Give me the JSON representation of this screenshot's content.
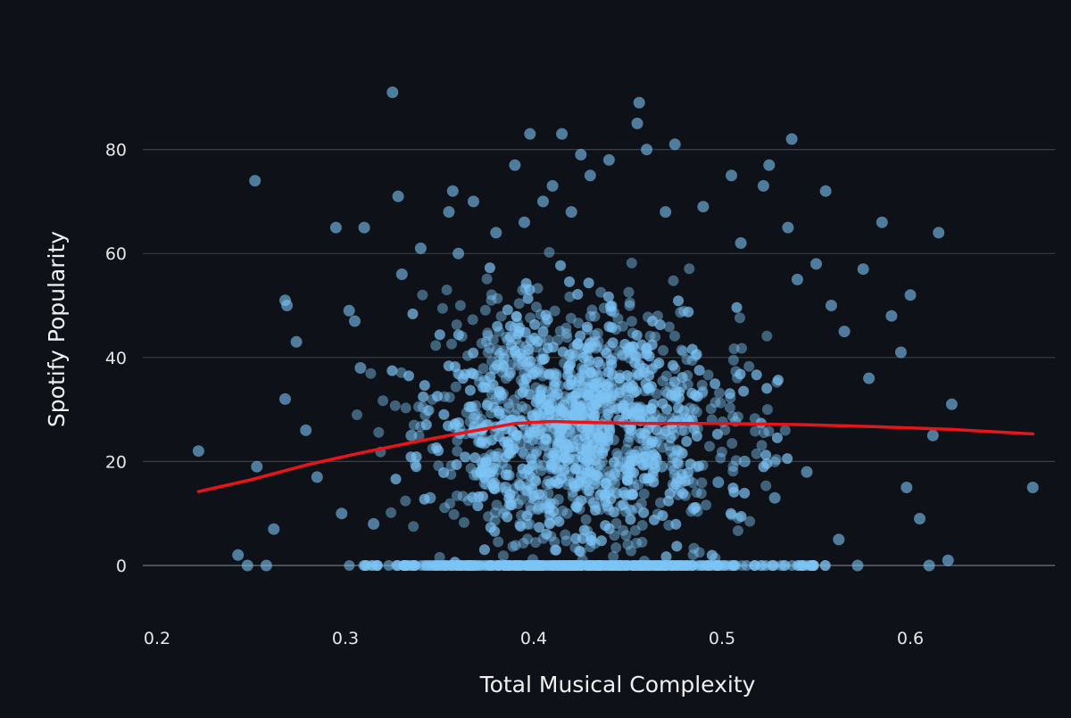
{
  "chart_data": {
    "type": "scatter",
    "title": "",
    "xlabel": "Total Musical Complexity",
    "ylabel": "Spotify Popularity",
    "xlim": [
      0.2,
      0.68
    ],
    "ylim": [
      -10,
      92
    ],
    "x_ticks": [
      0.2,
      0.3,
      0.4,
      0.5,
      0.6
    ],
    "x_tick_labels": [
      "0.2",
      "0.3",
      "0.4",
      "0.5",
      "0.6"
    ],
    "y_ticks": [
      0,
      20,
      40,
      60,
      80
    ],
    "y_tick_labels": [
      "0",
      "20",
      "40",
      "60",
      "80"
    ],
    "grid": true,
    "legend": "none",
    "point_color": "#7cc4f5",
    "trend_color": "#e8141c",
    "background": "#0e1117",
    "series": [
      {
        "kind": "points",
        "x": [
          0.222,
          0.252,
          0.253,
          0.268,
          0.269,
          0.274,
          0.268,
          0.279,
          0.295,
          0.302,
          0.305,
          0.308,
          0.31,
          0.325,
          0.328,
          0.33,
          0.34,
          0.355,
          0.357,
          0.36,
          0.368,
          0.38,
          0.39,
          0.395,
          0.398,
          0.405,
          0.41,
          0.415,
          0.42,
          0.425,
          0.43,
          0.44,
          0.455,
          0.456,
          0.46,
          0.47,
          0.475,
          0.49,
          0.505,
          0.51,
          0.522,
          0.525,
          0.535,
          0.537,
          0.54,
          0.55,
          0.555,
          0.558,
          0.565,
          0.575,
          0.585,
          0.59,
          0.595,
          0.6,
          0.605,
          0.61,
          0.615,
          0.62,
          0.622,
          0.665,
          0.243,
          0.248,
          0.258,
          0.262,
          0.285,
          0.298,
          0.315,
          0.335,
          0.345,
          0.372,
          0.385,
          0.412,
          0.432,
          0.448,
          0.468,
          0.485,
          0.498,
          0.512,
          0.528,
          0.545,
          0.562,
          0.572,
          0.578,
          0.598,
          0.612
        ],
        "y": [
          22,
          74,
          19,
          51,
          50,
          43,
          32,
          26,
          65,
          49,
          47,
          38,
          65,
          91,
          71,
          56,
          61,
          68,
          72,
          60,
          70,
          64,
          77,
          66,
          83,
          70,
          73,
          83,
          68,
          79,
          75,
          78,
          85,
          89,
          80,
          68,
          81,
          69,
          75,
          62,
          73,
          77,
          65,
          82,
          55,
          58,
          72,
          50,
          45,
          57,
          66,
          48,
          41,
          52,
          9,
          0,
          64,
          1,
          31,
          15,
          2,
          0,
          0,
          7,
          17,
          10,
          8,
          25,
          13,
          18,
          15,
          21,
          12,
          14,
          19,
          11,
          16,
          20,
          13,
          18,
          5,
          0,
          36,
          15,
          25
        ]
      },
      {
        "kind": "trend-line",
        "x": [
          0.222,
          0.25,
          0.28,
          0.31,
          0.34,
          0.37,
          0.39,
          0.41,
          0.43,
          0.46,
          0.5,
          0.54,
          0.58,
          0.62,
          0.665
        ],
        "y": [
          14.2,
          16.5,
          19.4,
          21.8,
          24.0,
          26.0,
          27.3,
          27.7,
          27.5,
          27.3,
          27.3,
          27.1,
          26.7,
          26.2,
          25.3
        ]
      }
    ]
  }
}
